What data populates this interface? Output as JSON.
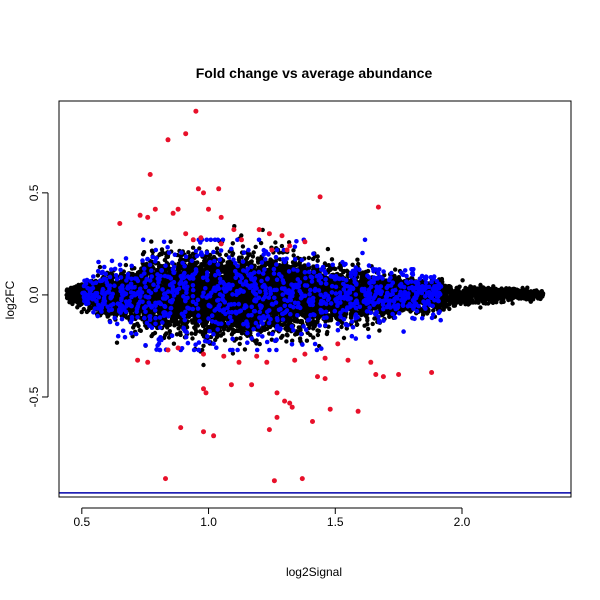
{
  "chart_data": {
    "type": "scatter",
    "title": "Fold change vs average abundance",
    "xlabel": "log2Signal",
    "ylabel": "log2FC",
    "xlim": [
      0.41,
      2.43
    ],
    "ylim": [
      -0.99,
      0.95
    ],
    "x_ticks": [
      0.5,
      1.0,
      1.5,
      2.0
    ],
    "x_tick_labels": [
      "0.5",
      "1.0",
      "1.5",
      "2.0"
    ],
    "y_ticks": [
      -0.5,
      0.0,
      0.5
    ],
    "y_tick_labels": [
      "-0.5",
      "0.0",
      "0.5"
    ],
    "grid": false,
    "horizontal_reference_line": {
      "y": -0.97,
      "color": "#0000aa"
    },
    "colors": {
      "background_points": "#000000",
      "highlight_points": "#0000ff",
      "outlier_points": "#e8102a"
    },
    "cloud": {
      "description_free_model": true,
      "x_range": [
        0.44,
        2.32
      ],
      "spread_at": [
        {
          "x": 0.45,
          "sd": 0.012
        },
        {
          "x": 0.6,
          "sd": 0.05
        },
        {
          "x": 0.8,
          "sd": 0.08
        },
        {
          "x": 1.0,
          "sd": 0.09
        },
        {
          "x": 1.2,
          "sd": 0.085
        },
        {
          "x": 1.4,
          "sd": 0.075
        },
        {
          "x": 1.6,
          "sd": 0.055
        },
        {
          "x": 1.8,
          "sd": 0.04
        },
        {
          "x": 2.0,
          "sd": 0.025
        },
        {
          "x": 2.3,
          "sd": 0.01
        }
      ]
    },
    "series": [
      {
        "role": "outlier",
        "color": "#e8102a",
        "points": [
          [
            0.95,
            0.9
          ],
          [
            0.91,
            0.79
          ],
          [
            0.84,
            0.76
          ],
          [
            0.77,
            0.59
          ],
          [
            0.96,
            0.52
          ],
          [
            0.98,
            0.5
          ],
          [
            1.04,
            0.52
          ],
          [
            0.79,
            0.42
          ],
          [
            0.86,
            0.4
          ],
          [
            0.88,
            0.42
          ],
          [
            0.76,
            0.38
          ],
          [
            0.73,
            0.39
          ],
          [
            0.65,
            0.35
          ],
          [
            1.0,
            0.42
          ],
          [
            1.05,
            0.38
          ],
          [
            1.1,
            0.32
          ],
          [
            1.13,
            0.27
          ],
          [
            1.2,
            0.32
          ],
          [
            1.24,
            0.3
          ],
          [
            1.29,
            0.29
          ],
          [
            1.32,
            0.24
          ],
          [
            1.38,
            0.26
          ],
          [
            1.44,
            0.48
          ],
          [
            1.67,
            0.43
          ],
          [
            0.91,
            0.3
          ],
          [
            0.94,
            0.27
          ],
          [
            0.97,
            0.28
          ],
          [
            1.05,
            0.25
          ],
          [
            1.25,
            0.22
          ],
          [
            1.31,
            0.22
          ],
          [
            0.84,
            -0.27
          ],
          [
            0.88,
            -0.26
          ],
          [
            0.98,
            -0.29
          ],
          [
            1.06,
            -0.3
          ],
          [
            1.12,
            -0.33
          ],
          [
            1.19,
            -0.3
          ],
          [
            1.23,
            -0.33
          ],
          [
            1.34,
            -0.32
          ],
          [
            1.38,
            -0.29
          ],
          [
            1.46,
            -0.31
          ],
          [
            1.55,
            -0.32
          ],
          [
            1.64,
            -0.33
          ],
          [
            1.75,
            -0.39
          ],
          [
            0.72,
            -0.32
          ],
          [
            0.76,
            -0.33
          ],
          [
            0.98,
            -0.46
          ],
          [
            0.99,
            -0.48
          ],
          [
            1.09,
            -0.44
          ],
          [
            1.17,
            -0.44
          ],
          [
            1.27,
            -0.48
          ],
          [
            1.3,
            -0.52
          ],
          [
            1.32,
            -0.53
          ],
          [
            1.33,
            -0.55
          ],
          [
            1.43,
            -0.4
          ],
          [
            1.46,
            -0.41
          ],
          [
            1.66,
            -0.39
          ],
          [
            1.69,
            -0.4
          ],
          [
            1.59,
            -0.57
          ],
          [
            1.48,
            -0.56
          ],
          [
            1.41,
            -0.62
          ],
          [
            0.89,
            -0.65
          ],
          [
            0.98,
            -0.67
          ],
          [
            1.02,
            -0.69
          ],
          [
            1.24,
            -0.66
          ],
          [
            1.27,
            -0.6
          ],
          [
            0.83,
            -0.9
          ],
          [
            1.26,
            -0.91
          ],
          [
            1.37,
            -0.9
          ],
          [
            1.88,
            -0.38
          ],
          [
            1.51,
            -0.24
          ]
        ]
      }
    ]
  }
}
